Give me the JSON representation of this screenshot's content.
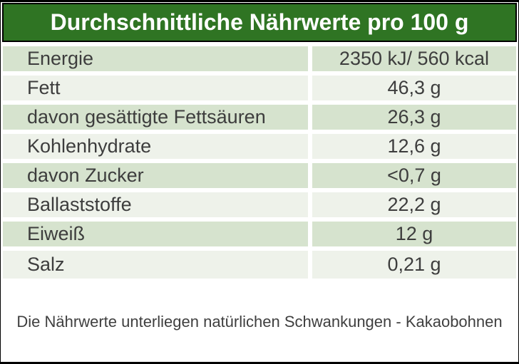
{
  "header": {
    "title": "Durchschnittliche Nährwerte pro 100 g"
  },
  "table": {
    "rows": [
      {
        "label": "Energie",
        "value": "2350 kJ/ 560 kcal"
      },
      {
        "label": "Fett",
        "value": "46,3 g"
      },
      {
        "label": "davon gesättigte Fettsäuren",
        "value": "26,3 g"
      },
      {
        "label": "Kohlenhydrate",
        "value": "12,6 g"
      },
      {
        "label": "davon Zucker",
        "value": "<0,7 g"
      },
      {
        "label": "Ballaststoffe",
        "value": "22,2 g"
      },
      {
        "label": "Eiweiß",
        "value": "12 g"
      },
      {
        "label": "Salz",
        "value": "0,21 g"
      }
    ]
  },
  "footer": {
    "note": "Die Nährwerte unterliegen natürlichen Schwankungen - Kakaobohnen"
  },
  "colors": {
    "header_bg": "#2f7423",
    "header_text": "#ffffff",
    "row_green": "#d6e3ce",
    "row_pale": "#eef2ea",
    "body_text": "#3d3d3d",
    "frame": "#000000"
  }
}
